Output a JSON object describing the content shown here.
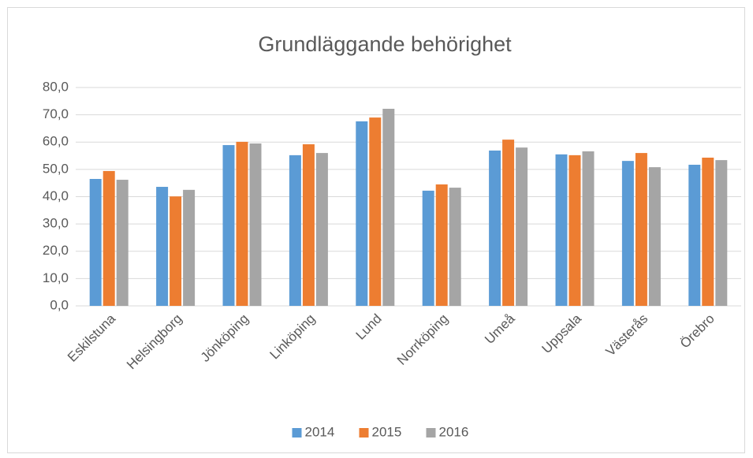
{
  "chart_data": {
    "type": "bar",
    "title": "Grundläggande behörighet",
    "categories": [
      "Eskilstuna",
      "Helsingborg",
      "Jönköping",
      "Linköping",
      "Lund",
      "Norrköping",
      "Umeå",
      "Uppsala",
      "Västerås",
      "Örebro"
    ],
    "series": [
      {
        "name": "2014",
        "color": "#5b9bd5",
        "values": [
          46.5,
          43.6,
          58.9,
          55.2,
          67.6,
          42.2,
          56.9,
          55.5,
          53.1,
          51.7
        ]
      },
      {
        "name": "2015",
        "color": "#ed7d31",
        "values": [
          49.4,
          40.1,
          60.1,
          59.2,
          69.0,
          44.5,
          60.9,
          55.2,
          56.0,
          54.3
        ]
      },
      {
        "name": "2016",
        "color": "#a5a5a5",
        "values": [
          46.2,
          42.5,
          59.5,
          56.0,
          72.2,
          43.3,
          58.0,
          56.6,
          50.8,
          53.4
        ]
      }
    ],
    "ylim": [
      0,
      80
    ],
    "yticks": [
      {
        "value": 0,
        "label": "0,0"
      },
      {
        "value": 10,
        "label": "10,0"
      },
      {
        "value": 20,
        "label": "20,0"
      },
      {
        "value": 30,
        "label": "30,0"
      },
      {
        "value": 40,
        "label": "40,0"
      },
      {
        "value": 50,
        "label": "50,0"
      },
      {
        "value": 60,
        "label": "60,0"
      },
      {
        "value": 70,
        "label": "70,0"
      },
      {
        "value": 80,
        "label": "80,0"
      }
    ],
    "grid": true,
    "legend": "bottom"
  }
}
